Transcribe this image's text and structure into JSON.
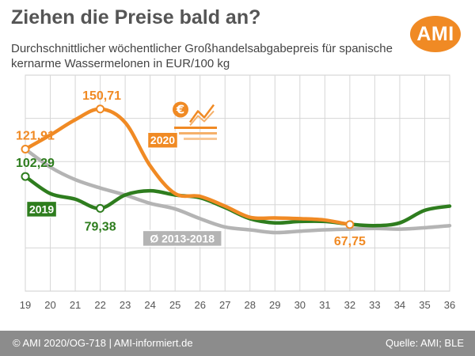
{
  "header": {
    "title": "Ziehen die Preise bald an?",
    "subtitle": "Durchschnittlicher wöchentlicher Großhandelsabgabepreis für spanische kernarme Wassermelonen in EUR/100 kg",
    "logo_text": "AMI"
  },
  "footer": {
    "left": "© AMI 2020/OG-718 | AMI-informiert.de",
    "right": "Quelle: AMI; BLE"
  },
  "chart_data": {
    "type": "line",
    "x": [
      19,
      20,
      21,
      22,
      23,
      24,
      25,
      26,
      27,
      28,
      29,
      30,
      31,
      32,
      33,
      34,
      35,
      36
    ],
    "xlim": [
      19,
      36
    ],
    "ylim": [
      20,
      175
    ],
    "grid": true,
    "series": [
      {
        "name": "Ø 2013-2018",
        "color": "#b4b4b4",
        "x": [
          19,
          20,
          21,
          22,
          23,
          24,
          25,
          26,
          27,
          28,
          29,
          30,
          31,
          32,
          33,
          34,
          35,
          36
        ],
        "values": [
          121.9,
          109,
          100,
          94,
          89,
          83,
          79,
          72,
          66,
          64,
          62,
          63,
          64,
          64.5,
          65,
          64.5,
          65.5,
          67
        ]
      },
      {
        "name": "2019",
        "color": "#2e7d1e",
        "x": [
          19,
          20,
          21,
          22,
          23,
          24,
          25,
          26,
          27,
          28,
          29,
          30,
          31,
          32,
          33,
          34,
          35,
          36
        ],
        "values": [
          102.29,
          90,
          86,
          79.38,
          89,
          92,
          89,
          87,
          80,
          72,
          69,
          70,
          70,
          68,
          67,
          69,
          78,
          81
        ]
      },
      {
        "name": "2020",
        "color": "#f08a24",
        "x": [
          19,
          20,
          21,
          22,
          23,
          24,
          25,
          26,
          27,
          28,
          29,
          30,
          31,
          32
        ],
        "values": [
          121.91,
          132,
          143,
          150.71,
          141,
          110,
          90,
          88,
          81,
          73,
          72.5,
          72,
          71,
          67.75
        ]
      }
    ],
    "annotations": [
      {
        "series": "2020",
        "x": 19,
        "y": 121.91,
        "label": "121,91"
      },
      {
        "series": "2020",
        "x": 22,
        "y": 150.71,
        "label": "150,71"
      },
      {
        "series": "2020",
        "x": 32,
        "y": 67.75,
        "label": "67,75"
      },
      {
        "series": "2019",
        "x": 19,
        "y": 102.29,
        "label": "102,29"
      },
      {
        "series": "2019",
        "x": 22,
        "y": 79.38,
        "label": "79,38"
      }
    ],
    "legend_tags": [
      {
        "series": "2020",
        "text": "2020"
      },
      {
        "series": "2019",
        "text": "2019"
      },
      {
        "series": "Ø 2013-2018",
        "text": "Ø 2013-2018"
      }
    ],
    "icon": "euro-rising-chart-icon"
  }
}
